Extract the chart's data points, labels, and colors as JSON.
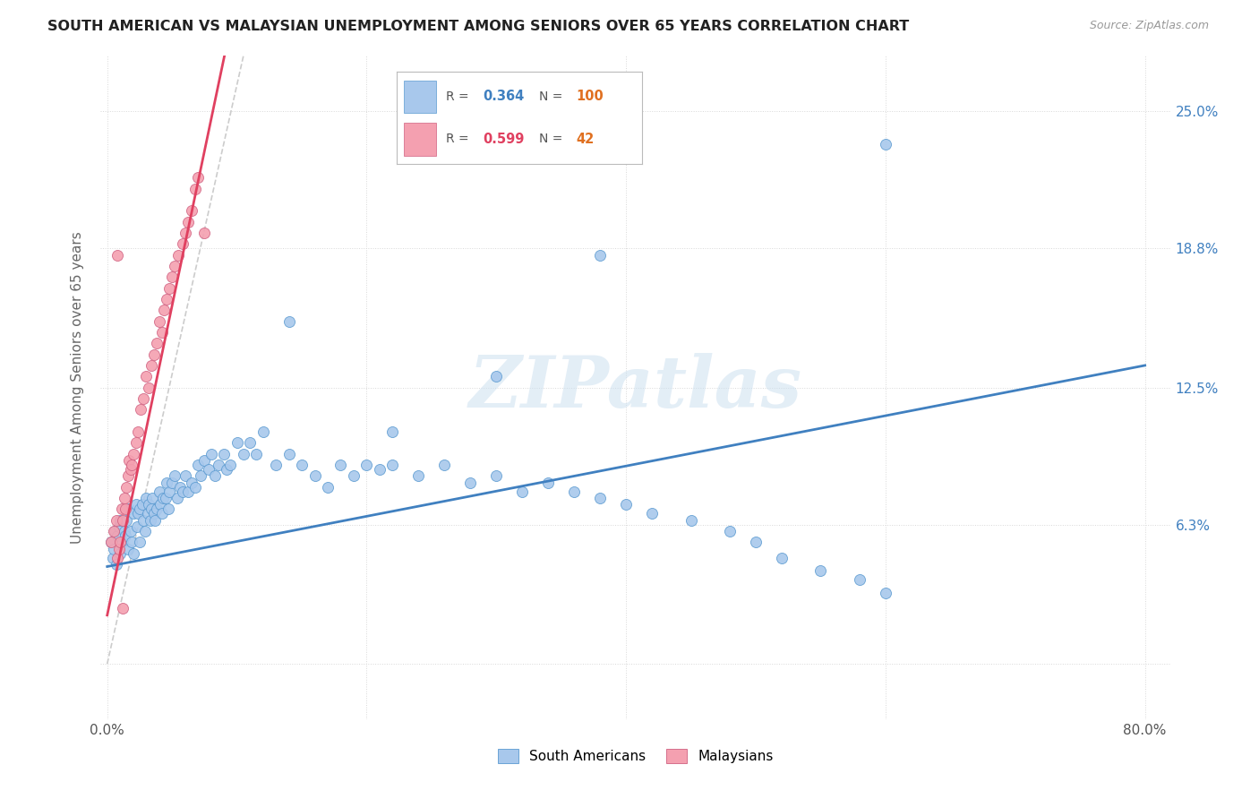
{
  "title": "SOUTH AMERICAN VS MALAYSIAN UNEMPLOYMENT AMONG SENIORS OVER 65 YEARS CORRELATION CHART",
  "source": "Source: ZipAtlas.com",
  "ylabel": "Unemployment Among Seniors over 65 years",
  "xlim": [
    -0.005,
    0.82
  ],
  "ylim": [
    -0.025,
    0.275
  ],
  "xticks": [
    0.0,
    0.2,
    0.4,
    0.6,
    0.8
  ],
  "xticklabels": [
    "0.0%",
    "",
    "",
    "",
    "80.0%"
  ],
  "ytick_positions": [
    0.0,
    0.063,
    0.125,
    0.188,
    0.25
  ],
  "ytick_labels_right": [
    "",
    "6.3%",
    "12.5%",
    "18.8%",
    "25.0%"
  ],
  "watermark": "ZIPatlas",
  "legend_R_blue": "0.364",
  "legend_N_blue": "100",
  "legend_R_pink": "0.599",
  "legend_N_pink": "42",
  "blue_fill": "#a8c8ec",
  "blue_edge": "#5a9ad0",
  "pink_fill": "#f4a0b0",
  "pink_edge": "#d06080",
  "line_blue_color": "#4080c0",
  "line_pink_color": "#e04060",
  "line_gray_color": "#cccccc",
  "blue_line_x0": 0.0,
  "blue_line_y0": 0.044,
  "blue_line_x1": 0.8,
  "blue_line_y1": 0.135,
  "pink_line_x0": 0.0,
  "pink_line_y0": 0.022,
  "pink_line_slope": 2.8,
  "gray_line_x0": 0.0,
  "gray_line_y0": 0.0,
  "gray_line_x1": 0.105,
  "gray_line_y1": 0.275,
  "sa_x": [
    0.003,
    0.004,
    0.005,
    0.006,
    0.007,
    0.008,
    0.009,
    0.01,
    0.01,
    0.012,
    0.013,
    0.014,
    0.015,
    0.016,
    0.017,
    0.018,
    0.019,
    0.02,
    0.02,
    0.022,
    0.023,
    0.024,
    0.025,
    0.025,
    0.027,
    0.028,
    0.029,
    0.03,
    0.031,
    0.032,
    0.033,
    0.034,
    0.035,
    0.036,
    0.037,
    0.038,
    0.04,
    0.041,
    0.042,
    0.043,
    0.045,
    0.046,
    0.047,
    0.048,
    0.05,
    0.052,
    0.054,
    0.056,
    0.058,
    0.06,
    0.062,
    0.065,
    0.068,
    0.07,
    0.072,
    0.075,
    0.078,
    0.08,
    0.083,
    0.086,
    0.09,
    0.092,
    0.095,
    0.1,
    0.105,
    0.11,
    0.115,
    0.12,
    0.13,
    0.14,
    0.15,
    0.16,
    0.17,
    0.18,
    0.19,
    0.2,
    0.21,
    0.22,
    0.24,
    0.26,
    0.28,
    0.3,
    0.32,
    0.34,
    0.36,
    0.38,
    0.4,
    0.42,
    0.45,
    0.48,
    0.5,
    0.52,
    0.55,
    0.58,
    0.6,
    0.14,
    0.22,
    0.3,
    0.38,
    0.6
  ],
  "sa_y": [
    0.055,
    0.048,
    0.052,
    0.06,
    0.045,
    0.058,
    0.062,
    0.065,
    0.05,
    0.055,
    0.06,
    0.058,
    0.065,
    0.052,
    0.07,
    0.06,
    0.055,
    0.068,
    0.05,
    0.072,
    0.062,
    0.068,
    0.07,
    0.055,
    0.072,
    0.065,
    0.06,
    0.075,
    0.068,
    0.072,
    0.065,
    0.07,
    0.075,
    0.068,
    0.065,
    0.07,
    0.078,
    0.072,
    0.068,
    0.075,
    0.075,
    0.082,
    0.07,
    0.078,
    0.082,
    0.085,
    0.075,
    0.08,
    0.078,
    0.085,
    0.078,
    0.082,
    0.08,
    0.09,
    0.085,
    0.092,
    0.088,
    0.095,
    0.085,
    0.09,
    0.095,
    0.088,
    0.09,
    0.1,
    0.095,
    0.1,
    0.095,
    0.105,
    0.09,
    0.095,
    0.09,
    0.085,
    0.08,
    0.09,
    0.085,
    0.09,
    0.088,
    0.09,
    0.085,
    0.09,
    0.082,
    0.085,
    0.078,
    0.082,
    0.078,
    0.075,
    0.072,
    0.068,
    0.065,
    0.06,
    0.055,
    0.048,
    0.042,
    0.038,
    0.032,
    0.155,
    0.105,
    0.13,
    0.185,
    0.235
  ],
  "my_x": [
    0.003,
    0.005,
    0.007,
    0.008,
    0.009,
    0.01,
    0.011,
    0.012,
    0.013,
    0.014,
    0.015,
    0.016,
    0.017,
    0.018,
    0.019,
    0.02,
    0.022,
    0.024,
    0.026,
    0.028,
    0.03,
    0.032,
    0.034,
    0.036,
    0.038,
    0.04,
    0.042,
    0.044,
    0.046,
    0.048,
    0.05,
    0.052,
    0.055,
    0.058,
    0.06,
    0.062,
    0.065,
    0.068,
    0.07,
    0.075,
    0.008,
    0.012
  ],
  "my_y": [
    0.055,
    0.06,
    0.065,
    0.048,
    0.052,
    0.055,
    0.07,
    0.065,
    0.075,
    0.07,
    0.08,
    0.085,
    0.092,
    0.088,
    0.09,
    0.095,
    0.1,
    0.105,
    0.115,
    0.12,
    0.13,
    0.125,
    0.135,
    0.14,
    0.145,
    0.155,
    0.15,
    0.16,
    0.165,
    0.17,
    0.175,
    0.18,
    0.185,
    0.19,
    0.195,
    0.2,
    0.205,
    0.215,
    0.22,
    0.195,
    0.185,
    0.025
  ]
}
